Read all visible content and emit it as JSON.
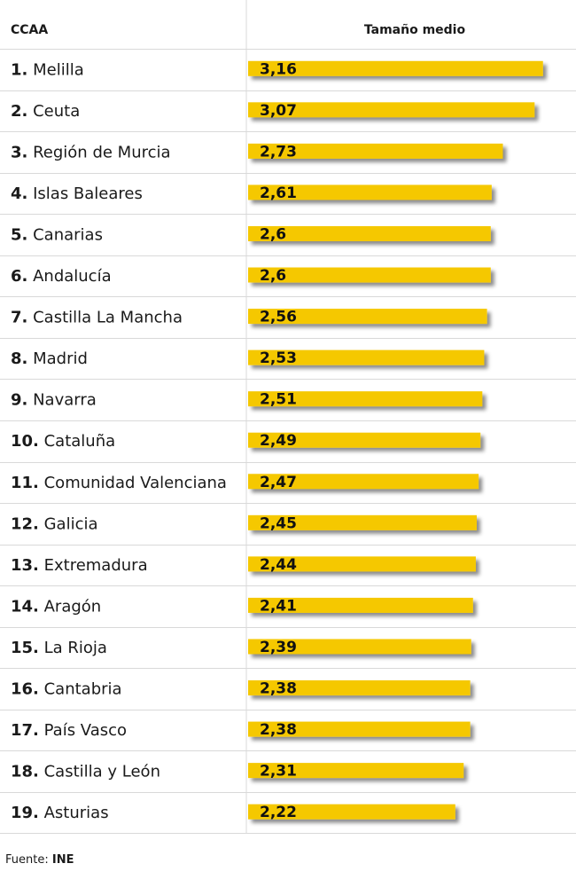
{
  "chart_data": {
    "type": "bar",
    "orientation": "horizontal",
    "column_headers": {
      "category": "CCAA",
      "value": "Tamaño medio"
    },
    "categories": [
      "Melilla",
      "Ceuta",
      "Región de Murcia",
      "Islas Baleares",
      "Canarias",
      "Andalucía",
      "Castilla La Mancha",
      "Madrid",
      "Navarra",
      "Cataluña",
      "Comunidad Valenciana",
      "Galicia",
      "Extremadura",
      "Aragón",
      "La Rioja",
      "Cantabria",
      "País Vasco",
      "Castilla y León",
      "Asturias"
    ],
    "ranks": [
      "1.",
      "2.",
      "3.",
      "4.",
      "5.",
      "6.",
      "7.",
      "8.",
      "9.",
      "10.",
      "11.",
      "12.",
      "13.",
      "14.",
      "15.",
      "16.",
      "17.",
      "18.",
      "19."
    ],
    "values": [
      3.16,
      3.07,
      2.73,
      2.61,
      2.6,
      2.6,
      2.56,
      2.53,
      2.51,
      2.49,
      2.47,
      2.45,
      2.44,
      2.41,
      2.39,
      2.38,
      2.38,
      2.31,
      2.22
    ],
    "value_labels": [
      "3,16",
      "3,07",
      "2,73",
      "2,61",
      "2,6",
      "2,6",
      "2,56",
      "2,53",
      "2,51",
      "2,49",
      "2,47",
      "2,45",
      "2,44",
      "2,41",
      "2,39",
      "2,38",
      "2,38",
      "2,31",
      "2,22"
    ],
    "bar_color": "#f5c800",
    "grid_color": "#d9d9d9"
  },
  "source": {
    "label": "Fuente:",
    "value": "INE"
  }
}
